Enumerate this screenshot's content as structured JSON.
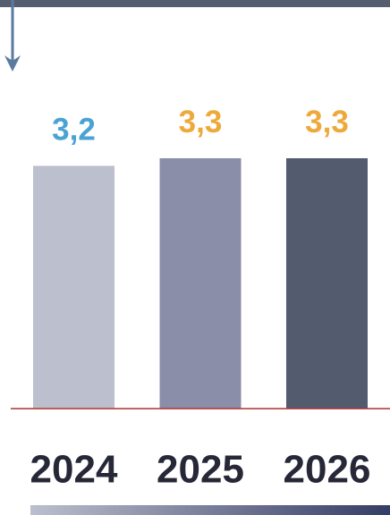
{
  "chart_data": {
    "type": "bar",
    "categories": [
      "2024",
      "2025",
      "2026"
    ],
    "values": [
      3.2,
      3.3,
      3.3
    ],
    "value_labels": [
      "3,2",
      "3,3",
      "3,3"
    ],
    "colors": [
      "#bcbfcd",
      "#8a8ea8",
      "#525c6e"
    ],
    "value_label_colors": [
      "#4aa3d4",
      "#eea93a",
      "#eea93a"
    ],
    "ylim": [
      0,
      4
    ]
  }
}
